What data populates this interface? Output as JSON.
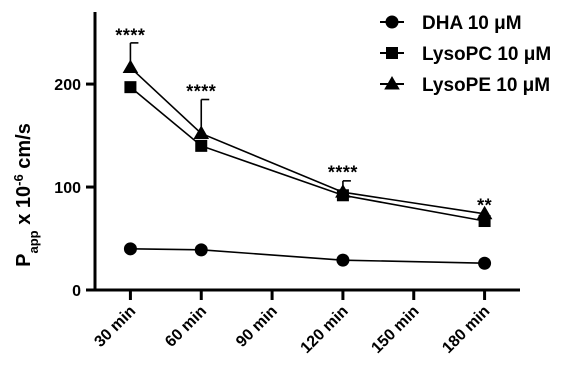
{
  "chart_data": {
    "type": "line",
    "title": "",
    "xlabel": "",
    "ylabel": {
      "base": "P",
      "subscript": "app",
      "middle": " x 10",
      "superscript": "-6",
      "suffix": " cm/s"
    },
    "x": [
      30,
      60,
      90,
      120,
      150,
      180
    ],
    "categories": [
      "30 min",
      "60 min",
      "90 min",
      "120 min",
      "150 min",
      "180 min"
    ],
    "xlim": [
      15,
      195
    ],
    "ylim": [
      0,
      270
    ],
    "y_ticks": [
      0,
      100,
      200
    ],
    "grid": false,
    "legend_position": "top-right",
    "series": [
      {
        "name": "DHA 10 μM",
        "marker": "circle",
        "color": "#000000",
        "x": [
          30,
          60,
          120,
          180
        ],
        "values": [
          40,
          39,
          29,
          26
        ],
        "error_upper": [
          0,
          0,
          0,
          0
        ]
      },
      {
        "name": "LysoPC 10 μM",
        "marker": "square",
        "color": "#000000",
        "x": [
          30,
          60,
          120,
          180
        ],
        "values": [
          197,
          140,
          92,
          67
        ],
        "error_upper": [
          0,
          0,
          0,
          0
        ]
      },
      {
        "name": "LysoPE 10 μM",
        "marker": "triangle",
        "color": "#000000",
        "x": [
          30,
          60,
          120,
          180
        ],
        "values": [
          216,
          152,
          95,
          74
        ],
        "error_upper": [
          24,
          33,
          11,
          0
        ]
      }
    ],
    "annotations": [
      {
        "x": 30,
        "y": 247,
        "text": "****"
      },
      {
        "x": 60,
        "y": 193,
        "text": "****"
      },
      {
        "x": 120,
        "y": 114,
        "text": "****"
      },
      {
        "x": 180,
        "y": 82,
        "text": "**"
      }
    ]
  }
}
